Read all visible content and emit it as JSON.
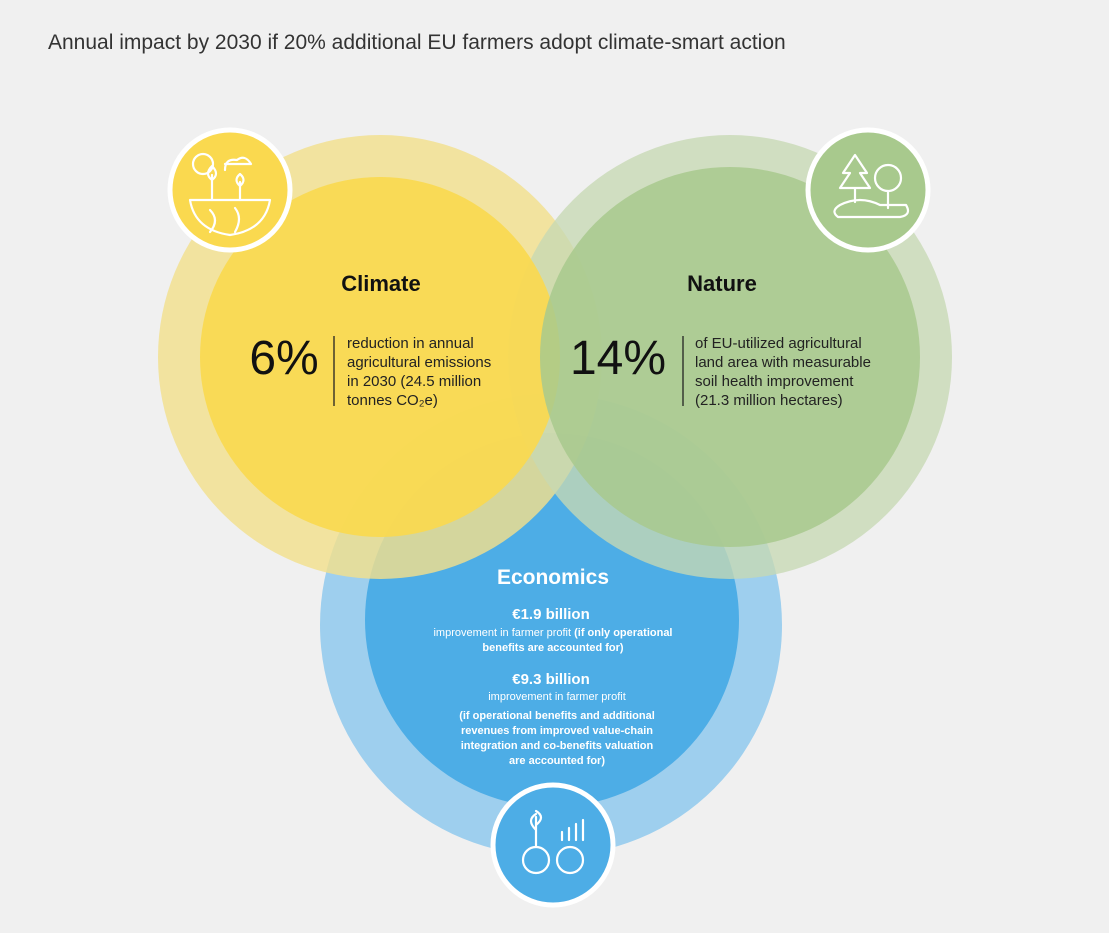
{
  "header": {
    "title": "Annual impact by 2030 if 20% additional EU farmers adopt climate-smart action"
  },
  "climate": {
    "label": "Climate",
    "figure": "6%",
    "lines": [
      "reduction in annual",
      "agricultural emissions",
      "in 2030 (24.5 million",
      "tonnes CO₂e)"
    ]
  },
  "nature": {
    "label": "Nature",
    "figure": "14%",
    "lines": [
      "of EU-utilized agricultural",
      "land area with measurable",
      "soil health improvement",
      "(21.3 million hectares)"
    ]
  },
  "economics": {
    "label": "Economics",
    "items": [
      {
        "figure": "€1.9 billion",
        "text": "improvement in farmer profit",
        "qualifier": [
          "(if only operational",
          "benefits are accounted for)"
        ]
      },
      {
        "figure": "€9.3 billion",
        "text": "improvement in farmer profit",
        "qualifier": [
          "(if operational benefits and additional",
          "revenues from improved value-chain",
          "integration and co-benefits valuation",
          "are accounted for)"
        ]
      }
    ]
  }
}
